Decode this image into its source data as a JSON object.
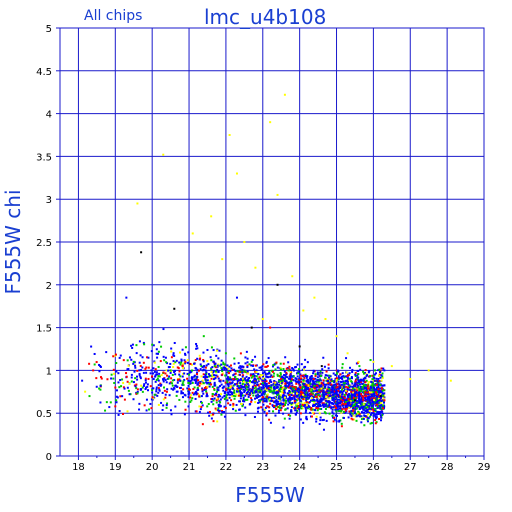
{
  "chart_data": {
    "type": "scatter",
    "title": "lmc_u4b108",
    "subtitle": "All chips",
    "xlabel": "F555W",
    "ylabel": "F555W chi",
    "xlim": [
      17.5,
      29
    ],
    "ylim": [
      0,
      5
    ],
    "x_ticks": [
      "18",
      "19",
      "20",
      "21",
      "22",
      "23",
      "24",
      "25",
      "26",
      "27",
      "28",
      "29"
    ],
    "y_ticks": [
      "0",
      "0.5",
      "1",
      "1.5",
      "2",
      "2.5",
      "3",
      "3.5",
      "4",
      "4.5",
      "5"
    ],
    "grid": true,
    "colors": {
      "axes": "#1a1acc",
      "title": "#1a3fd1",
      "series": [
        "#0000ff",
        "#00cc00",
        "#ff0000",
        "#ffff00",
        "#000000"
      ]
    },
    "series": [
      {
        "color": "#0000ff",
        "points": [
          [
            18.1,
            0.88
          ],
          [
            18.6,
            0.82
          ],
          [
            19.3,
            1.85
          ],
          [
            19.7,
            0.78
          ],
          [
            20.3,
            0.9
          ],
          [
            20.8,
            0.74
          ],
          [
            21.2,
            0.72
          ],
          [
            21.5,
            0.7
          ],
          [
            21.8,
            0.8
          ],
          [
            22.1,
            0.68
          ],
          [
            22.3,
            1.85
          ],
          [
            22.4,
            0.72
          ],
          [
            22.6,
            0.75
          ],
          [
            22.9,
            0.7
          ],
          [
            23.1,
            0.66
          ],
          [
            23.3,
            0.68
          ],
          [
            23.6,
            0.74
          ],
          [
            23.8,
            0.62
          ],
          [
            24.0,
            0.66
          ],
          [
            24.2,
            0.78
          ],
          [
            24.5,
            0.64
          ],
          [
            24.7,
            0.6
          ],
          [
            24.9,
            0.68
          ],
          [
            25.1,
            0.58
          ],
          [
            25.3,
            0.62
          ],
          [
            25.5,
            0.7
          ],
          [
            25.7,
            0.56
          ],
          [
            25.9,
            0.64
          ],
          [
            26.0,
            0.6
          ],
          [
            26.2,
            0.68
          ]
        ]
      },
      {
        "color": "#00cc00",
        "points": [
          [
            18.3,
            0.7
          ],
          [
            18.9,
            0.95
          ],
          [
            19.5,
            1.1
          ],
          [
            20.0,
            1.3
          ],
          [
            20.5,
            1.0
          ],
          [
            21.0,
            0.95
          ],
          [
            21.4,
            1.4
          ],
          [
            21.7,
            1.05
          ],
          [
            22.0,
            1.2
          ],
          [
            22.3,
            0.9
          ],
          [
            22.7,
            1.1
          ],
          [
            23.0,
            0.85
          ],
          [
            23.4,
            0.95
          ],
          [
            23.7,
            1.0
          ],
          [
            24.1,
            0.88
          ],
          [
            24.4,
            0.82
          ],
          [
            24.8,
            0.78
          ],
          [
            25.2,
            0.85
          ],
          [
            25.6,
            0.8
          ],
          [
            26.0,
            0.75
          ]
        ]
      },
      {
        "color": "#ff0000",
        "points": [
          [
            18.4,
            1.0
          ],
          [
            19.0,
            0.8
          ],
          [
            19.9,
            0.9
          ],
          [
            20.4,
            0.75
          ],
          [
            20.9,
            1.1
          ],
          [
            21.3,
            0.85
          ],
          [
            21.9,
            0.95
          ],
          [
            22.2,
            0.9
          ],
          [
            22.8,
            0.82
          ],
          [
            23.2,
            1.5
          ],
          [
            23.5,
            0.9
          ],
          [
            23.9,
            0.78
          ],
          [
            24.3,
            0.72
          ],
          [
            24.6,
            0.85
          ],
          [
            25.0,
            0.8
          ],
          [
            25.4,
            0.75
          ],
          [
            25.8,
            0.7
          ],
          [
            26.1,
            0.72
          ],
          [
            26.3,
            0.65
          ]
        ]
      },
      {
        "color": "#ffff00",
        "points": [
          [
            19.6,
            2.95
          ],
          [
            20.3,
            3.52
          ],
          [
            21.1,
            2.6
          ],
          [
            21.6,
            2.8
          ],
          [
            21.9,
            2.3
          ],
          [
            22.1,
            3.75
          ],
          [
            22.3,
            3.3
          ],
          [
            22.5,
            2.5
          ],
          [
            22.8,
            2.2
          ],
          [
            23.0,
            1.6
          ],
          [
            23.2,
            3.9
          ],
          [
            23.4,
            3.05
          ],
          [
            23.6,
            4.22
          ],
          [
            23.8,
            2.1
          ],
          [
            24.1,
            1.7
          ],
          [
            24.4,
            1.85
          ],
          [
            24.7,
            1.6
          ],
          [
            25.0,
            1.4
          ],
          [
            25.3,
            1.2
          ],
          [
            25.6,
            1.1
          ],
          [
            26.0,
            1.1
          ],
          [
            26.5,
            1.05
          ],
          [
            27.0,
            0.9
          ],
          [
            27.5,
            1.0
          ],
          [
            28.1,
            0.88
          ]
        ]
      },
      {
        "color": "#000000",
        "points": [
          [
            19.7,
            2.38
          ],
          [
            20.6,
            1.72
          ],
          [
            22.7,
            1.5
          ],
          [
            23.4,
            2.0
          ],
          [
            24.0,
            1.28
          ],
          [
            24.6,
            1.05
          ],
          [
            25.5,
            0.65
          ],
          [
            26.2,
            0.7
          ]
        ]
      }
    ],
    "cluster": {
      "x_range": [
        18.0,
        26.3
      ],
      "y_center": [
        [
          18,
          0.95
        ],
        [
          19,
          0.95
        ],
        [
          20,
          0.92
        ],
        [
          21,
          0.88
        ],
        [
          22,
          0.84
        ],
        [
          23,
          0.8
        ],
        [
          24,
          0.76
        ],
        [
          25,
          0.72
        ],
        [
          26,
          0.7
        ]
      ],
      "spread": 0.14,
      "count": 3200
    }
  }
}
